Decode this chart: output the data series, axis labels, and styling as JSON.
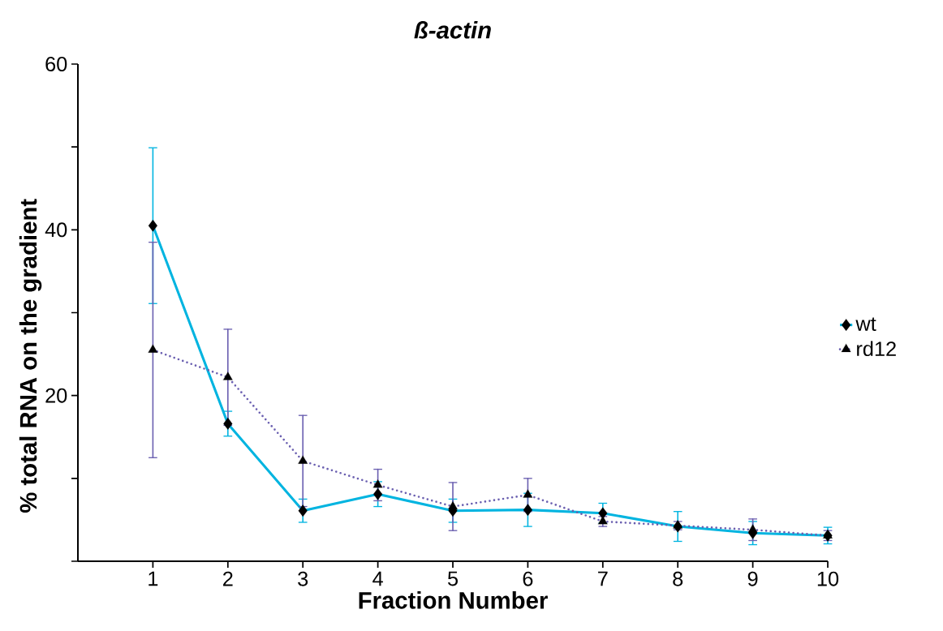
{
  "chart_data": {
    "type": "line",
    "title": "ß-actin",
    "xlabel": "Fraction Number",
    "ylabel": "% total RNA on the gradient",
    "x": [
      1,
      2,
      3,
      4,
      5,
      6,
      7,
      8,
      9,
      10
    ],
    "series": [
      {
        "name": "wt",
        "color": "#00b4e0",
        "marker": "diamond",
        "line_style": "solid",
        "values": [
          40.5,
          16.6,
          6.1,
          8.1,
          6.1,
          6.2,
          5.8,
          4.2,
          3.4,
          3.1
        ],
        "errors": [
          9.4,
          1.5,
          1.4,
          1.5,
          1.4,
          2.0,
          1.2,
          1.8,
          1.4,
          1.0
        ]
      },
      {
        "name": "rd12",
        "color": "#6a5fb0",
        "marker": "triangle",
        "line_style": "dotted",
        "values": [
          25.5,
          22.2,
          12.1,
          9.2,
          6.6,
          8.0,
          4.8,
          4.3,
          3.8,
          3.1
        ],
        "errors": [
          13.0,
          5.8,
          5.5,
          1.9,
          2.9,
          2.0,
          0.6,
          0.5,
          1.3,
          0.6
        ]
      }
    ],
    "xlim": [
      0,
      10
    ],
    "xticks": [
      1,
      2,
      3,
      4,
      5,
      6,
      7,
      8,
      9,
      10
    ],
    "ylim": [
      0,
      60
    ],
    "yticks": [
      {
        "value": 0,
        "label": null
      },
      {
        "value": 10,
        "label": null
      },
      20,
      {
        "value": 30,
        "label": null
      },
      40,
      {
        "value": 50,
        "label": null
      },
      60
    ],
    "legend": "right"
  }
}
